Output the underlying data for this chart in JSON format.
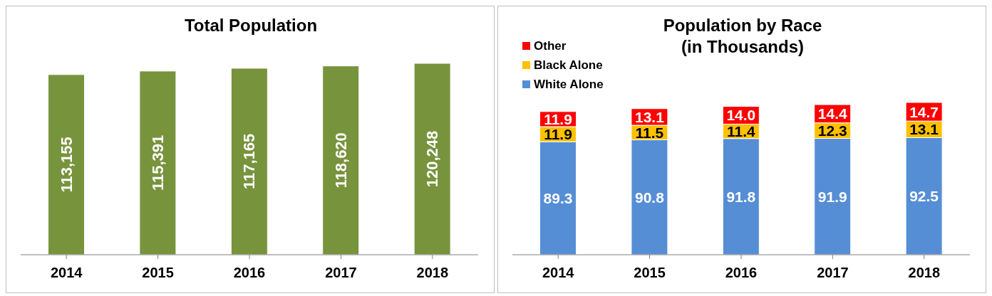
{
  "chart_data": [
    {
      "type": "bar",
      "title": "Total Population",
      "categories": [
        "2014",
        "2015",
        "2016",
        "2017",
        "2018"
      ],
      "values": [
        113155,
        115391,
        117165,
        118620,
        120248
      ],
      "color": "#77933c",
      "value_labels": [
        "113,155",
        "115,391",
        "117,165",
        "118,620",
        "120,248"
      ],
      "grid": false,
      "legend": false
    },
    {
      "type": "bar",
      "title": "Population by Race\n(in Thousands)",
      "categories": [
        "2014",
        "2015",
        "2016",
        "2017",
        "2018"
      ],
      "stacked": true,
      "grid": false,
      "legend": "top left",
      "series": [
        {
          "name": "White Alone",
          "color": "#558ed5",
          "values": [
            89.3,
            90.8,
            91.8,
            91.9,
            92.5
          ],
          "value_labels": [
            "89.3",
            "90.8",
            "91.8",
            "91.9",
            "92.5"
          ]
        },
        {
          "name": "Black Alone",
          "color": "#ffc000",
          "values": [
            11.9,
            11.5,
            11.4,
            12.3,
            13.1
          ],
          "value_labels": [
            "11.9",
            "11.5",
            "11.4",
            "12.3",
            "13.1"
          ]
        },
        {
          "name": "Other",
          "color": "#ff0000",
          "values": [
            11.9,
            13.1,
            14.0,
            14.4,
            14.7
          ],
          "value_labels": [
            "11.9",
            "13.1",
            "14.0",
            "14.4",
            "14.7"
          ]
        }
      ]
    }
  ]
}
